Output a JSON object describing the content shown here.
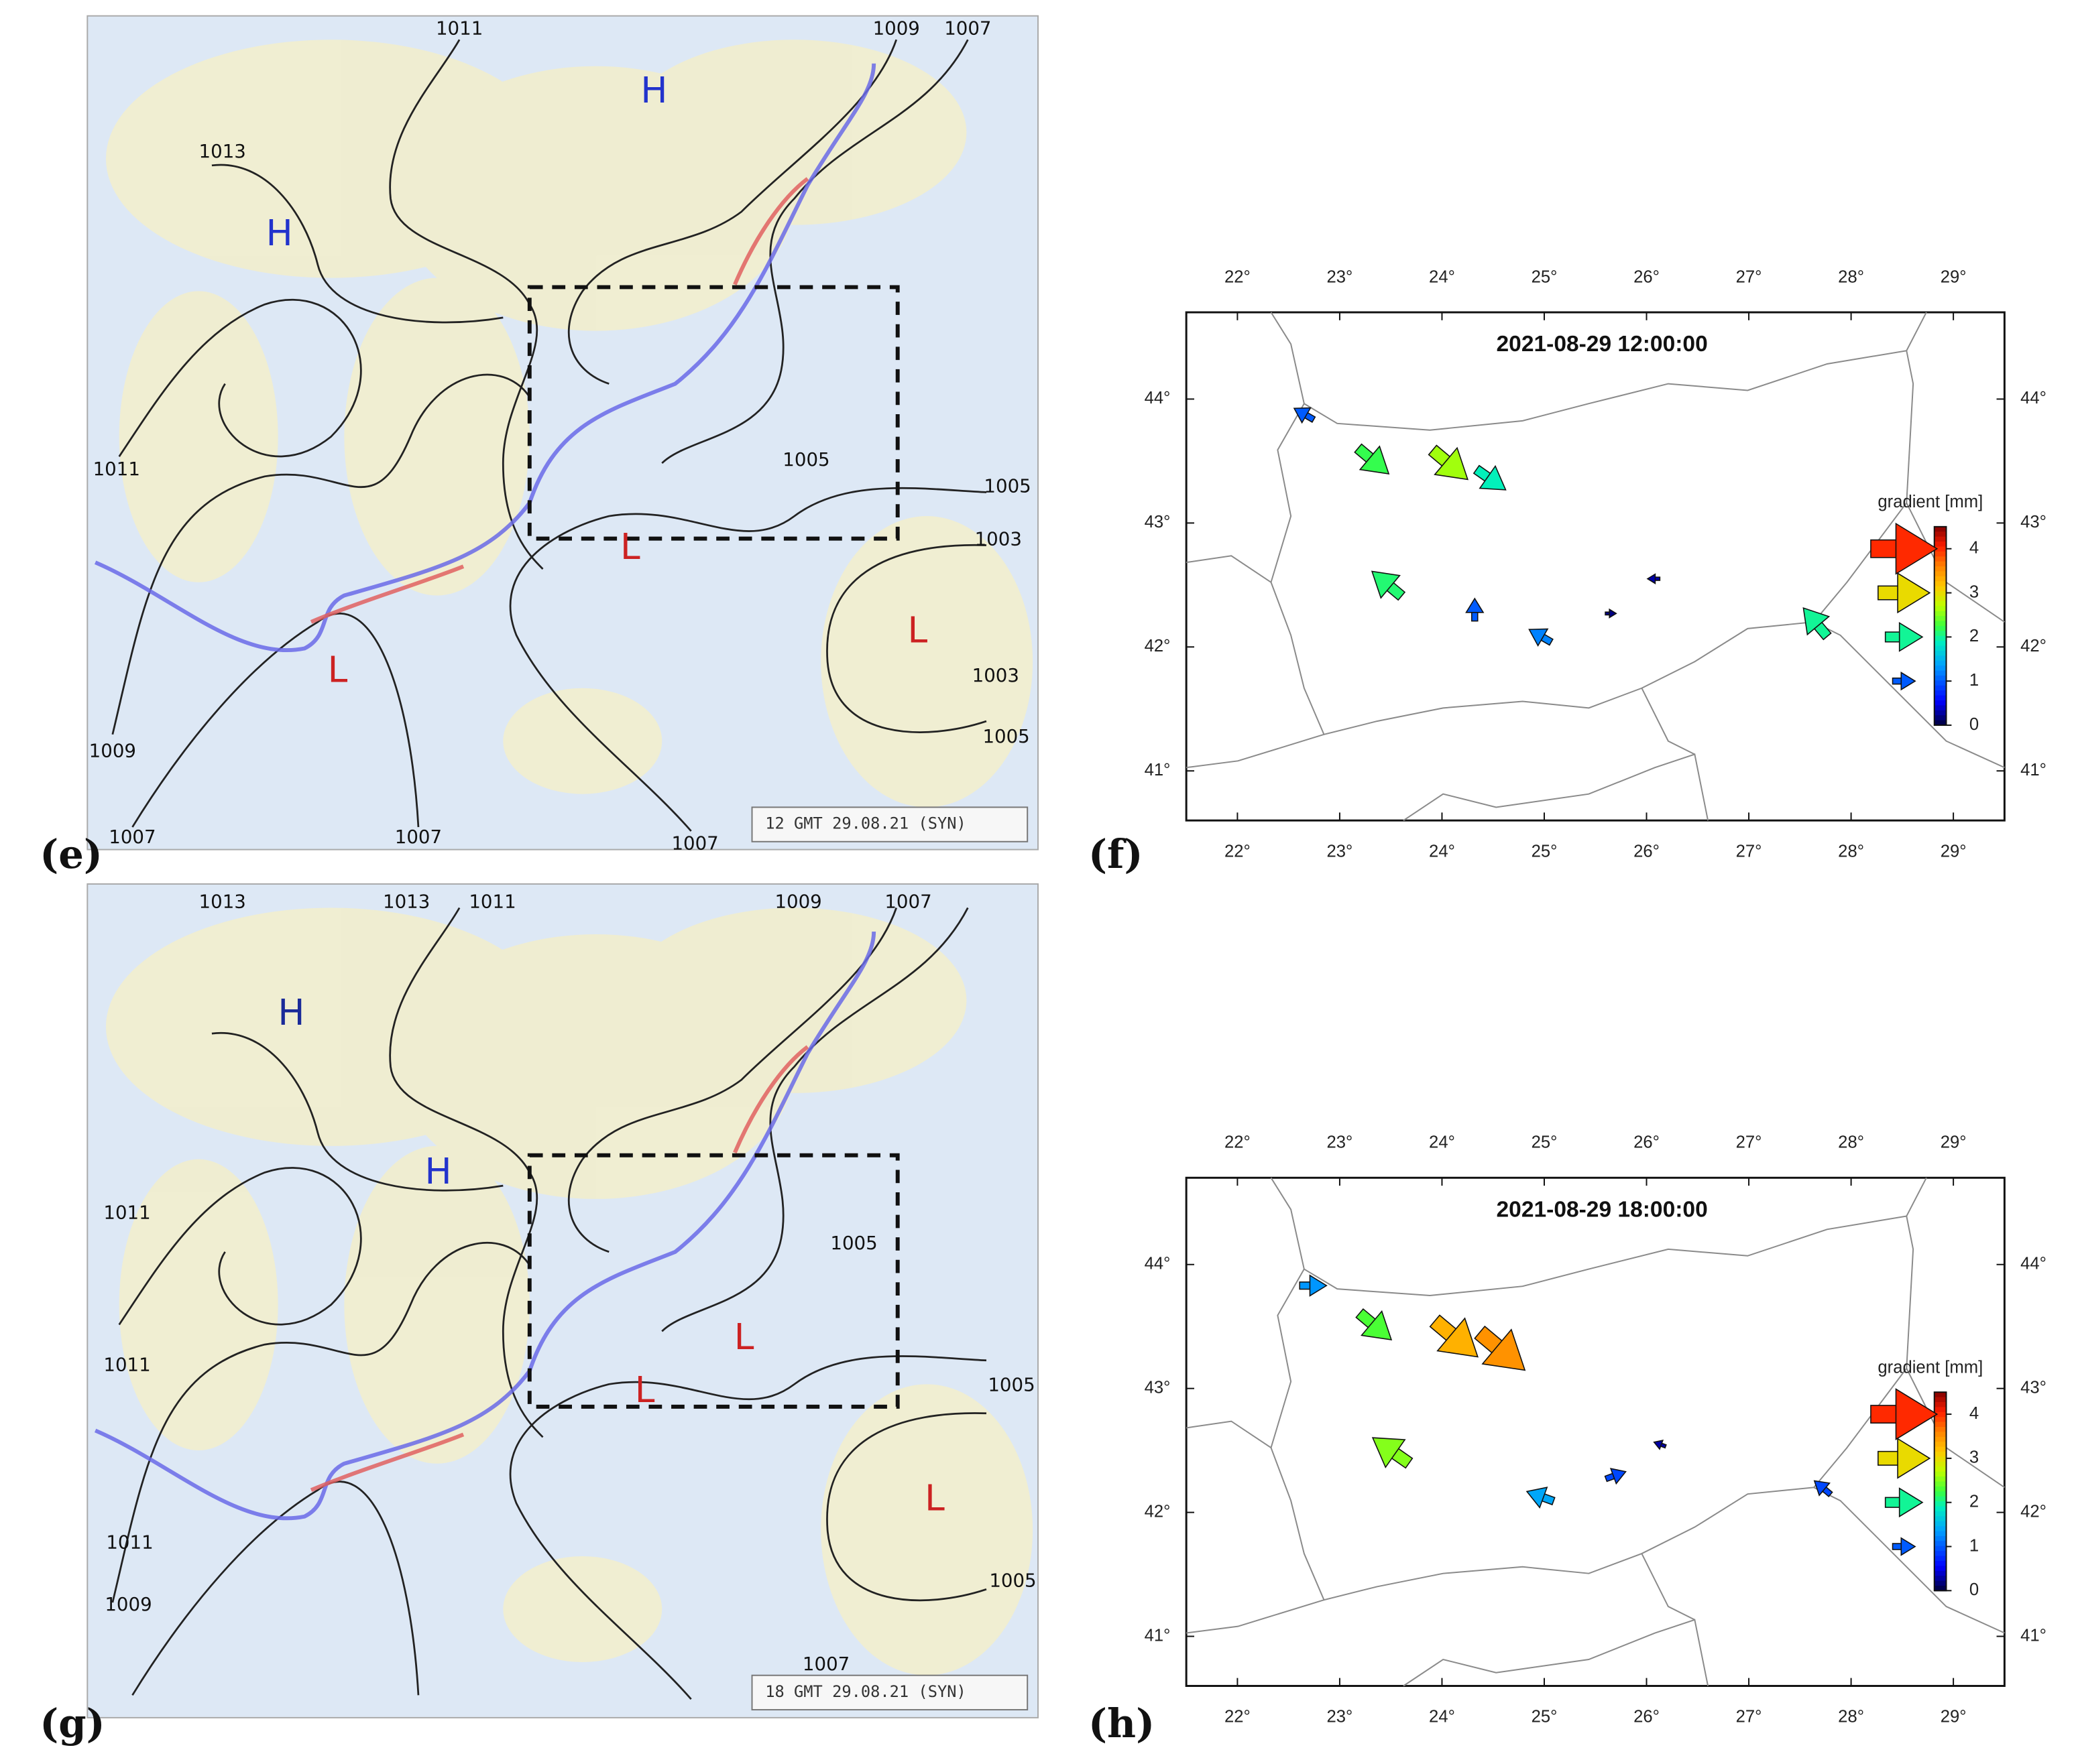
{
  "panels": [
    {
      "label": "(e)",
      "type": "synoptic_map",
      "stamp": "12 GMT 29.08.21 (SYN)",
      "isobar_labels": [
        1011,
        1009,
        1007,
        1013,
        1011,
        1005,
        1005,
        1003,
        1003,
        1005,
        1009,
        1007,
        1007,
        1007
      ],
      "centers": [
        "H",
        "H",
        "L",
        "L",
        "L"
      ]
    },
    {
      "label": "(f)",
      "type": "gradient_map",
      "title": "2021-08-29 12:00:00",
      "xlim": [
        21.5,
        29.5
      ],
      "ylim": [
        40.6,
        44.7
      ],
      "xticks": [
        {
          "value": 22,
          "label": "22°"
        },
        {
          "value": 23,
          "label": "23°"
        },
        {
          "value": 24,
          "label": "24°"
        },
        {
          "value": 25,
          "label": "25°"
        },
        {
          "value": 26,
          "label": "26°"
        },
        {
          "value": 27,
          "label": "27°"
        },
        {
          "value": 28,
          "label": "28°"
        },
        {
          "value": 29,
          "label": "29°"
        }
      ],
      "yticks": [
        {
          "value": 41,
          "label": "41°"
        },
        {
          "value": 42,
          "label": "42°"
        },
        {
          "value": 43,
          "label": "43°"
        },
        {
          "value": 44,
          "label": "44°"
        }
      ],
      "colorbar": {
        "label": "gradient [mm]",
        "clim": [
          0,
          4.5
        ],
        "ticks": [
          0,
          1,
          2,
          3,
          4
        ]
      },
      "legend_values": [
        4,
        3,
        2,
        1
      ],
      "stations": [
        {
          "lon": 22.65,
          "lat": 43.88,
          "gradient": 1.0,
          "angle": 150
        },
        {
          "lon": 23.33,
          "lat": 43.5,
          "gradient": 2.2,
          "angle": -40
        },
        {
          "lon": 24.08,
          "lat": 43.47,
          "gradient": 2.6,
          "angle": -40
        },
        {
          "lon": 24.48,
          "lat": 43.35,
          "gradient": 1.9,
          "angle": -35
        },
        {
          "lon": 23.46,
          "lat": 42.51,
          "gradient": 2.1,
          "angle": 140
        },
        {
          "lon": 24.32,
          "lat": 42.3,
          "gradient": 1.0,
          "angle": 90
        },
        {
          "lon": 24.96,
          "lat": 42.09,
          "gradient": 1.2,
          "angle": 150
        },
        {
          "lon": 26.07,
          "lat": 42.55,
          "gradient": 0.3,
          "angle": 180
        },
        {
          "lon": 25.65,
          "lat": 42.27,
          "gradient": 0.2,
          "angle": 0
        },
        {
          "lon": 27.65,
          "lat": 42.2,
          "gradient": 2.0,
          "angle": 130
        }
      ]
    },
    {
      "label": "(g)",
      "type": "synoptic_map",
      "stamp": "18 GMT 29.08.21 (SYN)",
      "isobar_labels": [
        1013,
        1013,
        1011,
        1009,
        1007,
        1011,
        1005,
        1011,
        1005,
        1011,
        1009,
        1005,
        1007
      ],
      "centers": [
        "H",
        "H",
        "L",
        "L",
        "L"
      ]
    },
    {
      "label": "(h)",
      "type": "gradient_map",
      "title": "2021-08-29 18:00:00",
      "xlim": [
        21.5,
        29.5
      ],
      "ylim": [
        40.6,
        44.7
      ],
      "xticks": [
        {
          "value": 22,
          "label": "22°"
        },
        {
          "value": 23,
          "label": "23°"
        },
        {
          "value": 24,
          "label": "24°"
        },
        {
          "value": 25,
          "label": "25°"
        },
        {
          "value": 26,
          "label": "26°"
        },
        {
          "value": 27,
          "label": "27°"
        },
        {
          "value": 28,
          "label": "28°"
        },
        {
          "value": 29,
          "label": "29°"
        }
      ],
      "yticks": [
        {
          "value": 41,
          "label": "41°"
        },
        {
          "value": 42,
          "label": "42°"
        },
        {
          "value": 43,
          "label": "43°"
        },
        {
          "value": 44,
          "label": "44°"
        }
      ],
      "colorbar": {
        "label": "gradient [mm]",
        "clim": [
          0,
          4.5
        ],
        "ticks": [
          0,
          1,
          2,
          3,
          4
        ]
      },
      "legend_values": [
        4,
        3,
        2,
        1
      ],
      "stations": [
        {
          "lon": 22.74,
          "lat": 43.83,
          "gradient": 1.3,
          "angle": 0
        },
        {
          "lon": 23.35,
          "lat": 43.5,
          "gradient": 2.3,
          "angle": -40
        },
        {
          "lon": 24.14,
          "lat": 43.4,
          "gradient": 3.3,
          "angle": -40
        },
        {
          "lon": 24.59,
          "lat": 43.3,
          "gradient": 3.5,
          "angle": -40
        },
        {
          "lon": 23.5,
          "lat": 42.5,
          "gradient": 2.5,
          "angle": 145
        },
        {
          "lon": 24.96,
          "lat": 42.13,
          "gradient": 1.4,
          "angle": 160
        },
        {
          "lon": 25.7,
          "lat": 42.3,
          "gradient": 0.9,
          "angle": 20
        },
        {
          "lon": 26.13,
          "lat": 42.55,
          "gradient": 0.3,
          "angle": 160
        },
        {
          "lon": 27.72,
          "lat": 42.2,
          "gradient": 0.9,
          "angle": 140
        }
      ]
    }
  ]
}
